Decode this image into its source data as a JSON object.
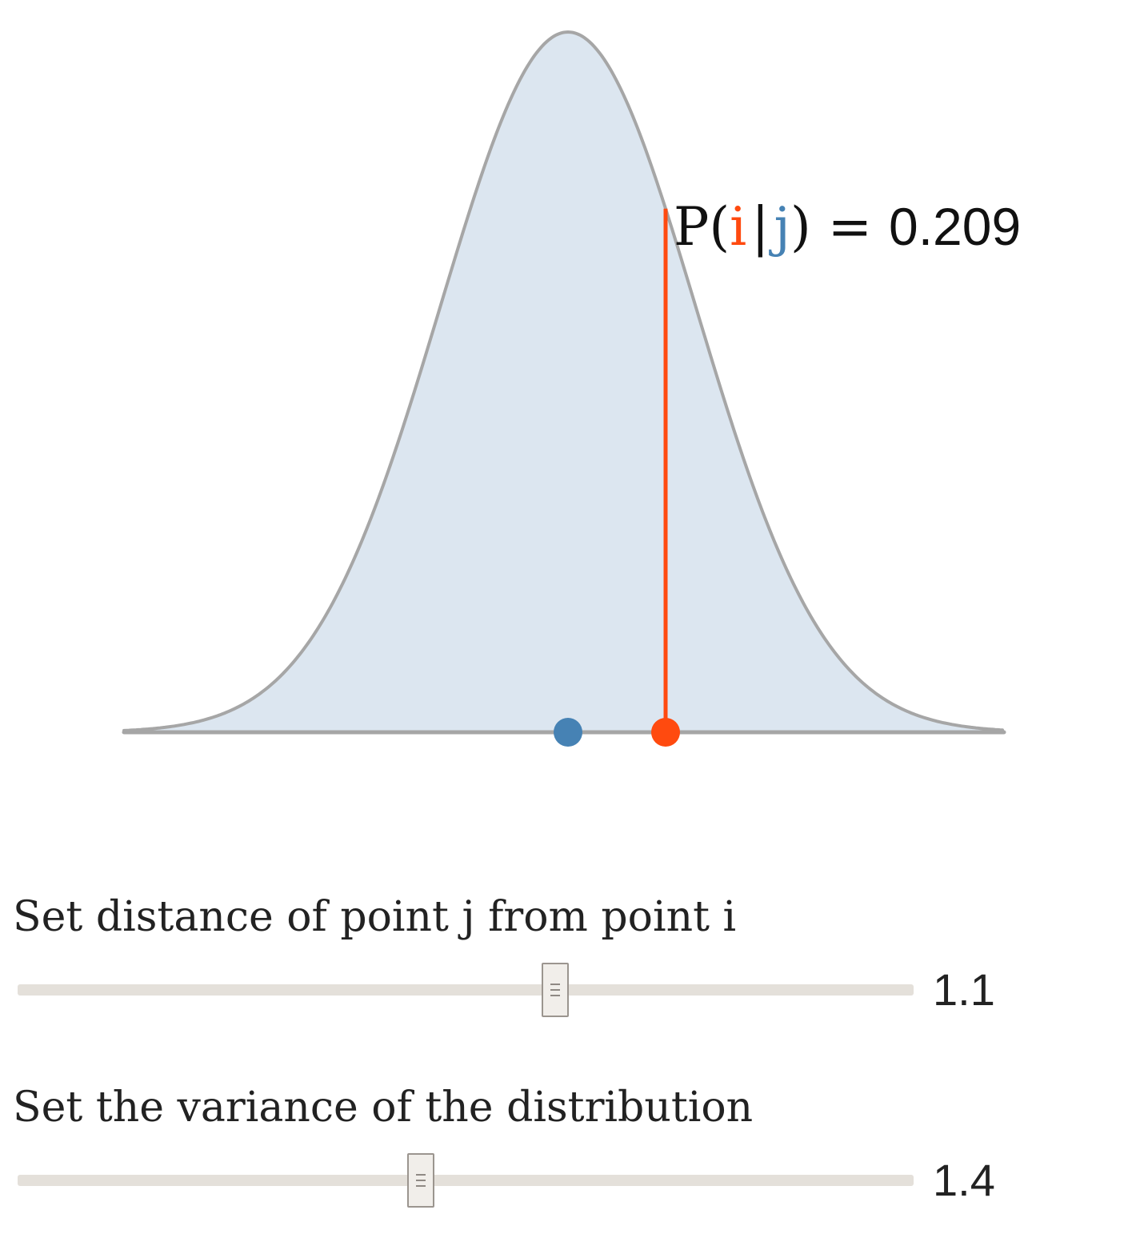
{
  "plot": {
    "label_prefix": "P(",
    "label_i": "i",
    "label_sep": "|",
    "label_j": "j",
    "label_suffix": ") = ",
    "probability": "0.209",
    "colors": {
      "curve_fill": "#dce6f0",
      "curve_stroke": "#a6a6a6",
      "point_i": "#ff4a0f",
      "point_j": "#4682b4",
      "text": "#111111"
    }
  },
  "controls": {
    "distance": {
      "label": "Set distance of point j from point i",
      "value": "1.1",
      "fraction": 0.6
    },
    "variance": {
      "label": "Set the variance of the distribution",
      "value": "1.4",
      "fraction": 0.45
    }
  }
}
